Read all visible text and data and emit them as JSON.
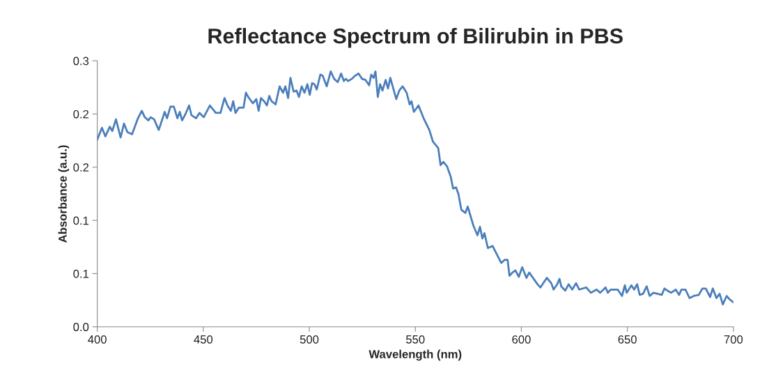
{
  "chart_data": {
    "type": "line",
    "title": "Reflectance Spectrum of Bilirubin in PBS",
    "xlabel": "Wavelength (nm)",
    "ylabel": "Absorbance (a.u.)",
    "series": [
      {
        "color": "#4a7ebb",
        "x": [
          400,
          402.2,
          403.8,
          405.9,
          407.1,
          408.8,
          411,
          412.6,
          414.2,
          416.4,
          419.2,
          421,
          422.4,
          424.1,
          425.2,
          426.8,
          429,
          431.8,
          432.9,
          434.5,
          436.1,
          437.8,
          438.9,
          440,
          441.6,
          443.3,
          444.4,
          446.6,
          448.2,
          450.2,
          453.1,
          455.9,
          458.1,
          460,
          461.4,
          463,
          464.1,
          465.2,
          466.8,
          469,
          470.1,
          471.2,
          473.4,
          475,
          476.1,
          477.2,
          478.7,
          480,
          481.1,
          482.2,
          484.1,
          486,
          487.6,
          488.7,
          490,
          491.1,
          492.6,
          494,
          495.1,
          496.4,
          497.7,
          499.1,
          500.2,
          501.3,
          502.4,
          503.5,
          505.2,
          506.3,
          508.2,
          510.1,
          511.7,
          513.4,
          515,
          516.3,
          517.2,
          518.3,
          520,
          521.6,
          523.2,
          524.9,
          526.5,
          528.2,
          529.2,
          530.3,
          531.2,
          532.3,
          533.4,
          534.5,
          536,
          537.1,
          538.2,
          541,
          542.4,
          544,
          545.9,
          547.3,
          548.2,
          549.3,
          551.5,
          553.9,
          556.6,
          558.3,
          560.8,
          561.9,
          563.2,
          564.9,
          566.7,
          567.8,
          569.2,
          570.3,
          571.7,
          573.6,
          574.7,
          577.4,
          579.3,
          580.5,
          581.6,
          582.6,
          584.2,
          586.4,
          590.5,
          592.2,
          593.5,
          594.4,
          595.8,
          597.2,
          598.8,
          600.4,
          602.4,
          603.7,
          607.6,
          609,
          612,
          614.1,
          615.2,
          616.9,
          618,
          618.8,
          620.7,
          622.3,
          624,
          625.8,
          627.3,
          630.6,
          632.8,
          635.5,
          637.2,
          639.7,
          640.8,
          642.1,
          645.4,
          647.5,
          648.8,
          649.7,
          651.9,
          653.2,
          654.6,
          655.8,
          657.4,
          659.1,
          660.5,
          662.3,
          666.2,
          667.5,
          668.9,
          670.6,
          672.8,
          674.4,
          675.5,
          677.4,
          679.3,
          681.3,
          683.7,
          685.4,
          687,
          689,
          690.3,
          692,
          693.5,
          695,
          696.8,
          698.1,
          700
        ],
        "values": [
          0.176,
          0.187,
          0.179,
          0.188,
          0.184,
          0.195,
          0.178,
          0.191,
          0.183,
          0.181,
          0.196,
          0.203,
          0.197,
          0.194,
          0.197,
          0.195,
          0.185,
          0.202,
          0.196,
          0.207,
          0.207,
          0.196,
          0.202,
          0.194,
          0.2,
          0.208,
          0.199,
          0.196,
          0.201,
          0.197,
          0.208,
          0.201,
          0.201,
          0.215,
          0.208,
          0.203,
          0.212,
          0.201,
          0.206,
          0.206,
          0.22,
          0.216,
          0.21,
          0.214,
          0.203,
          0.215,
          0.212,
          0.208,
          0.217,
          0.212,
          0.209,
          0.226,
          0.22,
          0.226,
          0.215,
          0.234,
          0.221,
          0.222,
          0.216,
          0.226,
          0.22,
          0.228,
          0.218,
          0.229,
          0.228,
          0.223,
          0.237,
          0.236,
          0.226,
          0.24,
          0.233,
          0.23,
          0.238,
          0.231,
          0.233,
          0.231,
          0.233,
          0.236,
          0.238,
          0.233,
          0.232,
          0.227,
          0.237,
          0.234,
          0.24,
          0.216,
          0.228,
          0.222,
          0.232,
          0.224,
          0.234,
          0.214,
          0.222,
          0.226,
          0.22,
          0.209,
          0.212,
          0.202,
          0.208,
          0.196,
          0.185,
          0.174,
          0.168,
          0.152,
          0.155,
          0.151,
          0.141,
          0.13,
          0.131,
          0.125,
          0.11,
          0.107,
          0.113,
          0.095,
          0.086,
          0.094,
          0.083,
          0.088,
          0.074,
          0.076,
          0.06,
          0.063,
          0.063,
          0.048,
          0.051,
          0.053,
          0.047,
          0.056,
          0.046,
          0.051,
          0.04,
          0.037,
          0.046,
          0.041,
          0.035,
          0.04,
          0.045,
          0.038,
          0.034,
          0.04,
          0.035,
          0.041,
          0.035,
          0.037,
          0.032,
          0.035,
          0.032,
          0.037,
          0.032,
          0.035,
          0.035,
          0.029,
          0.039,
          0.032,
          0.039,
          0.035,
          0.04,
          0.03,
          0.031,
          0.038,
          0.029,
          0.032,
          0.03,
          0.036,
          0.034,
          0.032,
          0.035,
          0.03,
          0.035,
          0.035,
          0.027,
          0.029,
          0.03,
          0.036,
          0.036,
          0.028,
          0.036,
          0.027,
          0.031,
          0.021,
          0.029,
          0.026,
          0.023
        ]
      }
    ],
    "xlim": [
      400,
      700
    ],
    "xticks": [
      400,
      450,
      500,
      550,
      600,
      650,
      700
    ],
    "ylim": [
      0,
      0.25
    ],
    "yticks": [
      {
        "value": 0,
        "label": "0.0"
      },
      {
        "value": 0.05,
        "label": "0.1"
      },
      {
        "value": 0.1,
        "label": "0.1"
      },
      {
        "value": 0.15,
        "label": "0.2"
      },
      {
        "value": 0.2,
        "label": "0.2"
      },
      {
        "value": 0.25,
        "label": "0.3"
      }
    ],
    "grid": false,
    "legend": false,
    "marker": "none",
    "line_style": "solid"
  }
}
